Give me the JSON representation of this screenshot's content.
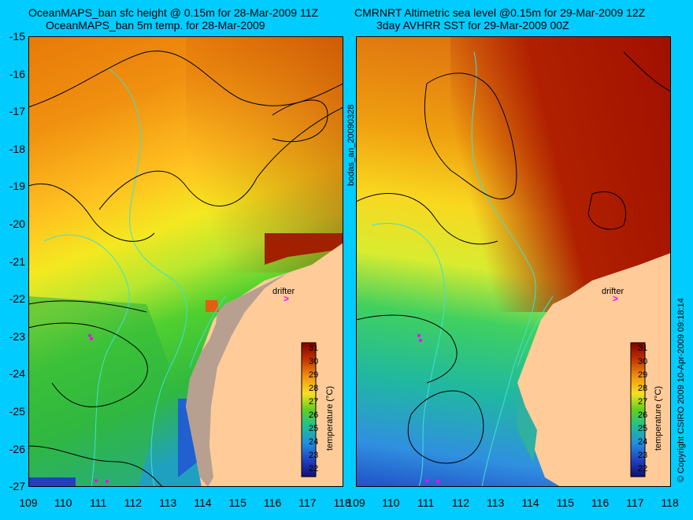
{
  "left": {
    "title_line1": "OceanMAPS_ban sfc height @ 0.15m for 28-Mar-2009 11Z",
    "title_line2": "OceanMAPS_ban 5m temp. for 28-Mar-2009"
  },
  "right": {
    "title_line1": "CMRNRT Altimetric sea level  @0.15m  for 29-Mar-2009 12Z",
    "title_line2": "3day AVHRR SST for 29-Mar-2009 00Z"
  },
  "run_label": "bodas_an_20090328",
  "copyright": "© Copyright CSIRO 2009   10-Apr-2009 09:18:14",
  "drifter_label": "drifter",
  "colorbar": {
    "title": "temperature (°C)",
    "ticks": [
      "31",
      "30",
      "29",
      "28",
      "27",
      "26",
      "25",
      "24",
      "23",
      "22"
    ]
  },
  "y_axis_labels": [
    "-15",
    "-16",
    "-17",
    "-18",
    "-19",
    "-20",
    "-21",
    "-22",
    "-23",
    "-24",
    "-25",
    "-26",
    "-27"
  ],
  "x_axis_labels_left": [
    "109",
    "110",
    "111",
    "112",
    "113",
    "114",
    "115",
    "116",
    "117",
    "118"
  ],
  "x_axis_labels_right": [
    "109",
    "110",
    "111",
    "112",
    "113",
    "114",
    "115",
    "116",
    "117",
    "118"
  ],
  "colors": {
    "background": "#00ccff",
    "land": "#ffcc99",
    "coastline_contour": "#40e0d0",
    "sea_level_contour": "#000000",
    "drifter": "#ff00ff"
  }
}
